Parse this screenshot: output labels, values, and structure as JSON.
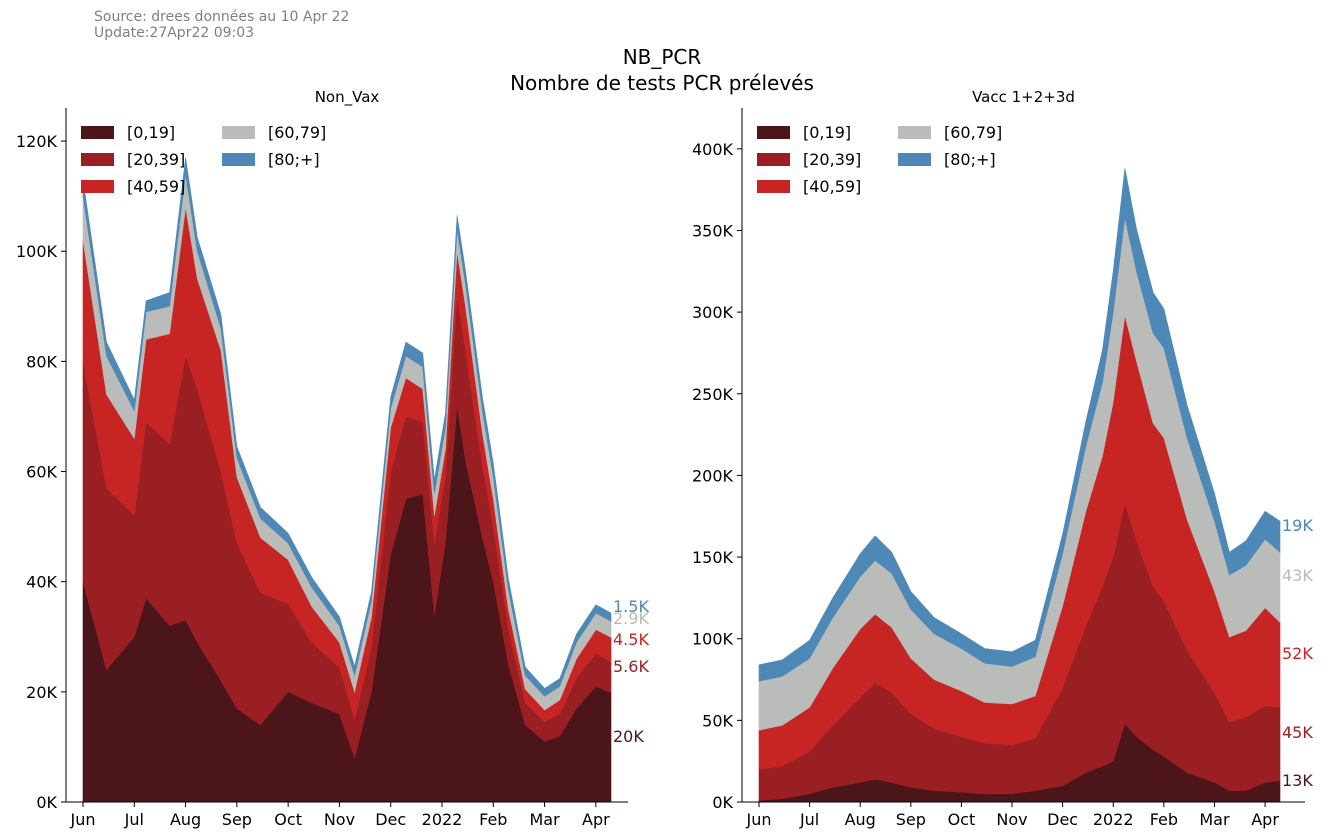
{
  "header": {
    "source": "Source: drees données au 10 Apr 22",
    "update": "Update:27Apr22 09:03",
    "title": "NB_PCR",
    "subtitle": "Nombre de tests PCR prélevés"
  },
  "chart_data": [
    {
      "type": "area",
      "stacked": true,
      "title": "Non_Vax",
      "xlabel": "",
      "ylabel": "",
      "x_ticks": [
        "Jun",
        "Jul",
        "Aug",
        "Sep",
        "Oct",
        "Nov",
        "Dec",
        "2022",
        "Feb",
        "Mar",
        "Apr"
      ],
      "y_ticks": [
        "0K",
        "20K",
        "40K",
        "60K",
        "80K",
        "100K",
        "120K"
      ],
      "ylim": [
        0,
        126000
      ],
      "legend": {
        "position": "top-left",
        "columns": 2
      },
      "x": [
        "Jun 01",
        "Jun 15",
        "Jul 01",
        "Jul 08",
        "Jul 22",
        "Aug 01",
        "Aug 08",
        "Aug 22",
        "Sep 01",
        "Sep 15",
        "Oct 01",
        "Oct 15",
        "Nov 01",
        "Nov 10",
        "Nov 20",
        "Dec 01",
        "Dec 10",
        "Dec 20",
        "Dec 27",
        "Jan 03",
        "Jan 10",
        "Jan 15",
        "Jan 25",
        "Feb 01",
        "Feb 10",
        "Feb 20",
        "Mar 01",
        "Mar 10",
        "Mar 20",
        "Apr 01",
        "Apr 10"
      ],
      "series": [
        {
          "name": "[0,19]",
          "color": "#4c1519",
          "values": [
            40000,
            24000,
            30000,
            37000,
            32000,
            33000,
            29000,
            22000,
            17000,
            14000,
            20000,
            18000,
            16000,
            8000,
            20000,
            45000,
            55000,
            56000,
            34000,
            47000,
            72000,
            62000,
            48000,
            40000,
            25000,
            14000,
            11000,
            12000,
            17000,
            21000,
            19800
          ]
        },
        {
          "name": "[20,39]",
          "color": "#9a1f23",
          "values": [
            40000,
            33000,
            22000,
            32000,
            33000,
            48000,
            46000,
            38000,
            30000,
            24000,
            16000,
            11000,
            8500,
            7000,
            8000,
            15000,
            15000,
            13000,
            13000,
            12000,
            20000,
            20000,
            13000,
            10000,
            6500,
            4000,
            3500,
            4000,
            5500,
            6000,
            5600
          ]
        },
        {
          "name": "[40,59]",
          "color": "#c72524",
          "values": [
            22000,
            17000,
            14000,
            15000,
            20000,
            27000,
            20000,
            22000,
            12000,
            10000,
            8000,
            6500,
            4500,
            5000,
            5500,
            8000,
            7000,
            6000,
            5000,
            5000,
            8000,
            8000,
            6000,
            5000,
            3500,
            2500,
            2200,
            2500,
            3500,
            4300,
            4500
          ]
        },
        {
          "name": "[60,79]",
          "color": "#b9bcb8",
          "values": [
            8000,
            7000,
            5000,
            5000,
            5000,
            6000,
            5000,
            4000,
            3500,
            3500,
            3000,
            3500,
            3000,
            3000,
            3000,
            3500,
            4000,
            4000,
            4000,
            4000,
            4000,
            4000,
            4000,
            4000,
            3500,
            2500,
            2500,
            2500,
            3000,
            3000,
            2900
          ]
        },
        {
          "name": "[80;+]",
          "color": "#4e88b6",
          "values": [
            3000,
            2500,
            2000,
            2000,
            2500,
            3000,
            2500,
            2500,
            2000,
            2000,
            1800,
            1800,
            1600,
            1600,
            1600,
            2000,
            2500,
            2500,
            2500,
            2500,
            2500,
            2500,
            2500,
            2500,
            2000,
            1500,
            1400,
            1400,
            1500,
            1500,
            1500
          ]
        }
      ],
      "end_labels": [
        "20K",
        "5.6K",
        "4.5K",
        "2.9K",
        "1.5K"
      ]
    },
    {
      "type": "area",
      "stacked": true,
      "title": "Vacc 1+2+3d",
      "xlabel": "",
      "ylabel": "",
      "x_ticks": [
        "Jun",
        "Jul",
        "Aug",
        "Sep",
        "Oct",
        "Nov",
        "Dec",
        "2022",
        "Feb",
        "Mar",
        "Apr"
      ],
      "y_ticks": [
        "0K",
        "50K",
        "100K",
        "150K",
        "200K",
        "250K",
        "300K",
        "350K",
        "400K"
      ],
      "ylim": [
        0,
        425000
      ],
      "legend": {
        "position": "top-left",
        "columns": 2
      },
      "x": [
        "Jun 01",
        "Jun 15",
        "Jul 01",
        "Jul 15",
        "Aug 01",
        "Aug 10",
        "Aug 20",
        "Sep 01",
        "Sep 15",
        "Oct 01",
        "Oct 15",
        "Nov 01",
        "Nov 15",
        "Dec 01",
        "Dec 15",
        "Dec 25",
        "Jan 01",
        "Jan 08",
        "Jan 15",
        "Jan 25",
        "Feb 01",
        "Feb 15",
        "Mar 01",
        "Mar 10",
        "Mar 20",
        "Apr 01",
        "Apr 10"
      ],
      "series": [
        {
          "name": "[0,19]",
          "color": "#4c1519",
          "values": [
            1000,
            2000,
            5000,
            9000,
            12000,
            14000,
            12000,
            9000,
            7000,
            6000,
            5000,
            5000,
            7000,
            10000,
            18000,
            22000,
            25000,
            48000,
            40000,
            32000,
            28000,
            18000,
            12000,
            7000,
            7000,
            12000,
            13000
          ]
        },
        {
          "name": "[20,39]",
          "color": "#9a1f23",
          "values": [
            19000,
            20000,
            26000,
            38000,
            52000,
            59000,
            55000,
            45000,
            38000,
            34000,
            31000,
            30000,
            32000,
            60000,
            90000,
            110000,
            125000,
            135000,
            120000,
            100000,
            95000,
            75000,
            55000,
            42000,
            45000,
            47000,
            45000
          ]
        },
        {
          "name": "[40,59]",
          "color": "#c72524",
          "values": [
            24000,
            25000,
            27000,
            35000,
            42000,
            42000,
            40000,
            34000,
            30000,
            28000,
            25000,
            25000,
            26000,
            50000,
            70000,
            80000,
            95000,
            115000,
            110000,
            100000,
            100000,
            80000,
            62000,
            52000,
            53000,
            60000,
            52000
          ]
        },
        {
          "name": "[60,79]",
          "color": "#b9bcb8",
          "values": [
            30000,
            30000,
            30000,
            31000,
            32000,
            33000,
            33000,
            30000,
            28000,
            26000,
            24000,
            23000,
            24000,
            32000,
            40000,
            45000,
            55000,
            60000,
            55000,
            55000,
            55000,
            50000,
            43000,
            38000,
            40000,
            42000,
            43000
          ]
        },
        {
          "name": "[80;+]",
          "color": "#4e88b6",
          "values": [
            10000,
            10000,
            11000,
            12000,
            14000,
            15000,
            13000,
            11000,
            10000,
            9000,
            9000,
            9000,
            10000,
            12000,
            15000,
            20000,
            25000,
            30000,
            26000,
            25000,
            24000,
            20000,
            17000,
            14000,
            15000,
            17000,
            19000
          ]
        }
      ],
      "end_labels": [
        "13K",
        "45K",
        "52K",
        "43K",
        "19K"
      ]
    }
  ]
}
